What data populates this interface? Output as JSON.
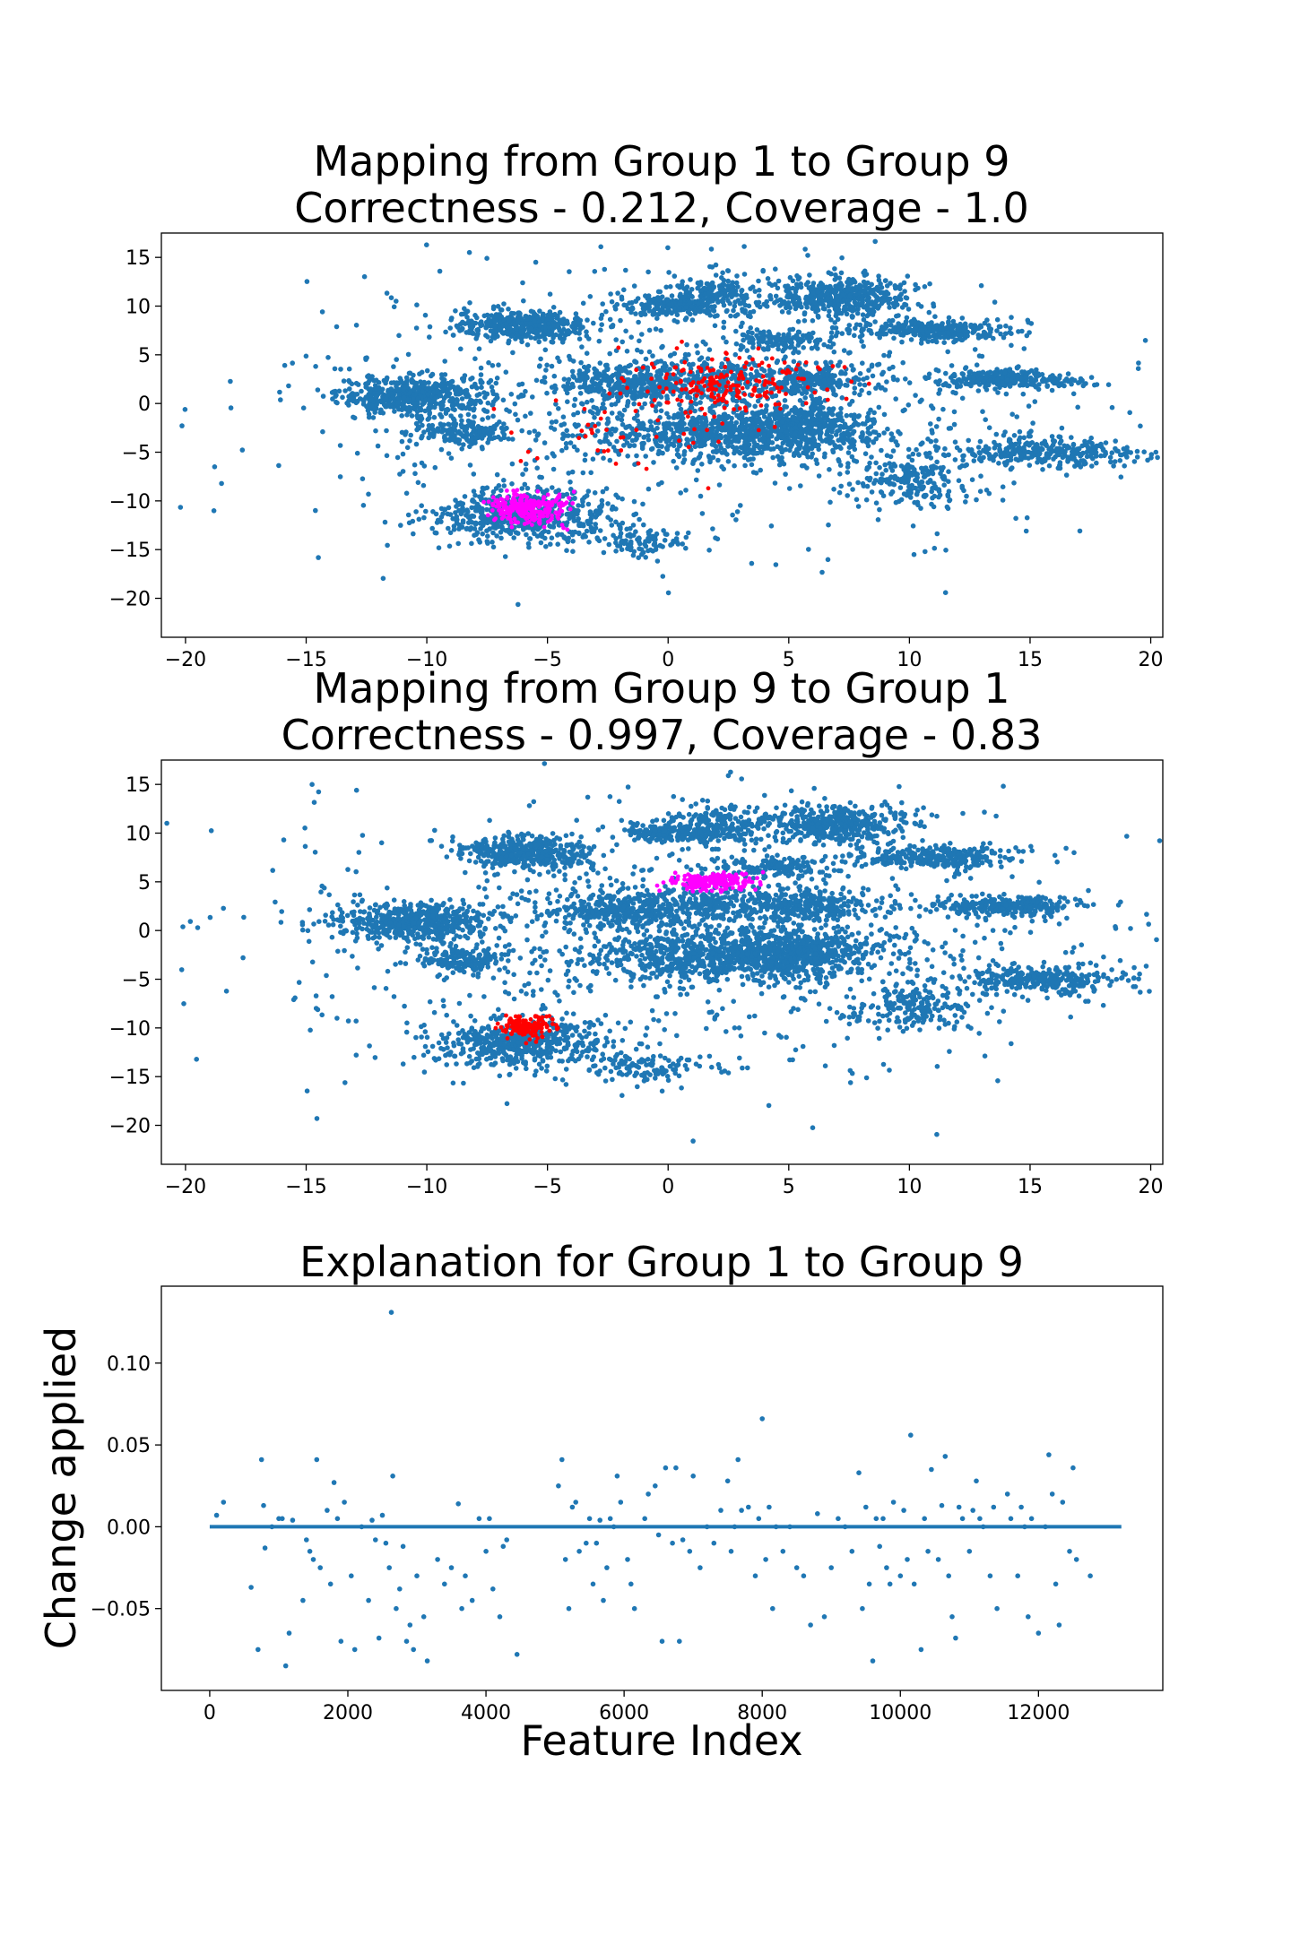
{
  "colors": {
    "population": "#1f77b4",
    "source_group": "#ff0000",
    "target_group": "#ff00ff",
    "explanation_line": "#1f77b4"
  },
  "chart_data": [
    {
      "type": "scatter",
      "title_lines": [
        "Mapping from Group 1 to Group 9",
        "Correctness - 0.212, Coverage - 1.0"
      ],
      "xlabel": "",
      "ylabel": "",
      "xlim": [
        -21,
        20.5
      ],
      "ylim": [
        -24,
        17.5
      ],
      "xticks": [
        -20,
        -15,
        -10,
        -5,
        0,
        5,
        10,
        15,
        20
      ],
      "yticks": [
        15,
        10,
        5,
        0,
        -5,
        -10,
        -15,
        -20
      ],
      "tick_labels_x": [
        "−20",
        "−15",
        "−10",
        "−5",
        "0",
        "5",
        "10",
        "15",
        "20"
      ],
      "tick_labels_y": [
        "15",
        "10",
        "5",
        "0",
        "−5",
        "−10",
        "−15",
        "−20"
      ],
      "grid": false,
      "series": [
        {
          "role": "population",
          "clusters": [
            {
              "cx": -10.5,
              "cy": 0.8,
              "sx": 1.6,
              "sy": 1.0,
              "n": 520
            },
            {
              "cx": -6.0,
              "cy": 8.0,
              "sx": 1.4,
              "sy": 0.8,
              "n": 420
            },
            {
              "cx": -8.5,
              "cy": -3.0,
              "sx": 1.0,
              "sy": 0.6,
              "n": 160
            },
            {
              "cx": -6.0,
              "cy": -11.5,
              "sx": 1.9,
              "sy": 1.3,
              "n": 520
            },
            {
              "cx": 3.0,
              "cy": -3.0,
              "sx": 3.2,
              "sy": 1.4,
              "n": 900
            },
            {
              "cx": 5.5,
              "cy": -2.0,
              "sx": 1.2,
              "sy": 1.0,
              "n": 200
            },
            {
              "cx": 1.5,
              "cy": 2.5,
              "sx": 2.2,
              "sy": 1.0,
              "n": 320
            },
            {
              "cx": -2.0,
              "cy": 2.0,
              "sx": 1.5,
              "sy": 1.0,
              "n": 250
            },
            {
              "cx": 2.0,
              "cy": 11.0,
              "sx": 1.0,
              "sy": 1.0,
              "n": 200
            },
            {
              "cx": 0.0,
              "cy": 10.0,
              "sx": 0.9,
              "sy": 0.5,
              "n": 160
            },
            {
              "cx": 7.0,
              "cy": 11.0,
              "sx": 1.5,
              "sy": 1.0,
              "n": 420
            },
            {
              "cx": 11.0,
              "cy": 7.5,
              "sx": 1.6,
              "sy": 0.5,
              "n": 300
            },
            {
              "cx": 14.0,
              "cy": 2.5,
              "sx": 1.6,
              "sy": 0.5,
              "n": 260
            },
            {
              "cx": 6.0,
              "cy": 2.5,
              "sx": 1.3,
              "sy": 0.8,
              "n": 220
            },
            {
              "cx": 4.5,
              "cy": 6.5,
              "sx": 1.0,
              "sy": 0.5,
              "n": 120
            },
            {
              "cx": 15.5,
              "cy": -5.0,
              "sx": 1.8,
              "sy": 0.7,
              "n": 300
            },
            {
              "cx": 10.0,
              "cy": -8.0,
              "sx": 1.3,
              "sy": 1.2,
              "n": 200
            },
            {
              "cx": -1.0,
              "cy": -14.0,
              "sx": 1.2,
              "sy": 0.8,
              "n": 100
            },
            {
              "cx": 1.0,
              "cy": 0.0,
              "sx": 9.0,
              "sy": 7.0,
              "n": 800
            }
          ]
        },
        {
          "role": "source_group",
          "clusters": [
            {
              "cx": 2.5,
              "cy": 2.0,
              "sx": 2.0,
              "sy": 1.5,
              "n": 200
            },
            {
              "cx": -2.0,
              "cy": -3.0,
              "sx": 2.0,
              "sy": 2.0,
              "n": 40
            }
          ]
        },
        {
          "role": "target_group",
          "clusters": [
            {
              "cx": -5.8,
              "cy": -10.8,
              "sx": 0.8,
              "sy": 0.8,
              "n": 260
            }
          ]
        }
      ]
    },
    {
      "type": "scatter",
      "title_lines": [
        "Mapping from Group 9 to Group 1",
        "Correctness - 0.997, Coverage - 0.83"
      ],
      "xlabel": "",
      "ylabel": "",
      "xlim": [
        -21,
        20.5
      ],
      "ylim": [
        -24,
        17.5
      ],
      "xticks": [
        -20,
        -15,
        -10,
        -5,
        0,
        5,
        10,
        15,
        20
      ],
      "yticks": [
        15,
        10,
        5,
        0,
        -5,
        -10,
        -15,
        -20
      ],
      "tick_labels_x": [
        "−20",
        "−15",
        "−10",
        "−5",
        "0",
        "5",
        "10",
        "15",
        "20"
      ],
      "tick_labels_y": [
        "15",
        "10",
        "5",
        "0",
        "−5",
        "−10",
        "−15",
        "−20"
      ],
      "grid": false,
      "series": [
        {
          "role": "population",
          "clusters": [
            {
              "cx": -10.5,
              "cy": 0.8,
              "sx": 1.6,
              "sy": 1.0,
              "n": 520
            },
            {
              "cx": -6.0,
              "cy": 8.0,
              "sx": 1.4,
              "sy": 0.8,
              "n": 420
            },
            {
              "cx": -8.5,
              "cy": -3.0,
              "sx": 1.0,
              "sy": 0.6,
              "n": 160
            },
            {
              "cx": -6.0,
              "cy": -11.5,
              "sx": 1.9,
              "sy": 1.3,
              "n": 520
            },
            {
              "cx": 3.0,
              "cy": -2.5,
              "sx": 3.2,
              "sy": 1.4,
              "n": 1000
            },
            {
              "cx": 5.5,
              "cy": -2.0,
              "sx": 1.2,
              "sy": 1.0,
              "n": 200
            },
            {
              "cx": 1.5,
              "cy": 2.5,
              "sx": 2.2,
              "sy": 1.0,
              "n": 320
            },
            {
              "cx": -2.0,
              "cy": 2.0,
              "sx": 1.5,
              "sy": 1.0,
              "n": 250
            },
            {
              "cx": 2.0,
              "cy": 11.0,
              "sx": 1.0,
              "sy": 1.0,
              "n": 200
            },
            {
              "cx": 0.0,
              "cy": 10.0,
              "sx": 0.9,
              "sy": 0.5,
              "n": 160
            },
            {
              "cx": 7.0,
              "cy": 11.0,
              "sx": 1.5,
              "sy": 1.0,
              "n": 420
            },
            {
              "cx": 11.0,
              "cy": 7.5,
              "sx": 1.6,
              "sy": 0.5,
              "n": 300
            },
            {
              "cx": 14.0,
              "cy": 2.5,
              "sx": 1.6,
              "sy": 0.5,
              "n": 260
            },
            {
              "cx": 6.0,
              "cy": 2.5,
              "sx": 1.3,
              "sy": 0.8,
              "n": 220
            },
            {
              "cx": 4.5,
              "cy": 6.5,
              "sx": 1.0,
              "sy": 0.5,
              "n": 120
            },
            {
              "cx": 15.5,
              "cy": -5.0,
              "sx": 1.8,
              "sy": 0.7,
              "n": 300
            },
            {
              "cx": 10.0,
              "cy": -8.0,
              "sx": 1.3,
              "sy": 1.2,
              "n": 200
            },
            {
              "cx": -1.0,
              "cy": -14.0,
              "sx": 1.2,
              "sy": 0.8,
              "n": 100
            },
            {
              "cx": 1.0,
              "cy": 0.0,
              "sx": 9.0,
              "sy": 7.0,
              "n": 800
            }
          ]
        },
        {
          "role": "source_group",
          "clusters": [
            {
              "cx": -5.8,
              "cy": -9.8,
              "sx": 0.5,
              "sy": 0.5,
              "n": 150
            }
          ]
        },
        {
          "role": "target_group",
          "clusters": [
            {
              "cx": 2.0,
              "cy": 5.0,
              "sx": 0.9,
              "sy": 0.4,
              "n": 200
            }
          ]
        }
      ]
    },
    {
      "type": "scatter",
      "title": "Explanation for Group 1 to Group 9",
      "xlabel": "Feature Index",
      "ylabel": "Change applied",
      "xlim": [
        -700,
        13800
      ],
      "ylim": [
        -0.1,
        0.147
      ],
      "xticks": [
        0,
        2000,
        4000,
        6000,
        8000,
        10000,
        12000
      ],
      "yticks": [
        0.1,
        0.05,
        0.0,
        -0.05
      ],
      "tick_labels_x": [
        "0",
        "2000",
        "4000",
        "6000",
        "8000",
        "10000",
        "12000"
      ],
      "tick_labels_y": [
        "0.10",
        "0.05",
        "0.00",
        "−0.05"
      ],
      "grid": false,
      "baseline": {
        "x_start": 0,
        "x_end": 13200,
        "y": 0.0
      },
      "points": [
        [
          100,
          0.007
        ],
        [
          200,
          0.015
        ],
        [
          600,
          -0.037
        ],
        [
          700,
          -0.075
        ],
        [
          750,
          0.041
        ],
        [
          800,
          -0.013
        ],
        [
          780,
          0.013
        ],
        [
          900,
          0.0
        ],
        [
          1000,
          0.005
        ],
        [
          1050,
          0.005
        ],
        [
          1100,
          -0.085
        ],
        [
          1150,
          -0.065
        ],
        [
          1200,
          0.004
        ],
        [
          1350,
          -0.045
        ],
        [
          1400,
          -0.008
        ],
        [
          1450,
          -0.015
        ],
        [
          1500,
          -0.02
        ],
        [
          1550,
          0.041
        ],
        [
          1600,
          -0.025
        ],
        [
          1700,
          0.01
        ],
        [
          1750,
          -0.035
        ],
        [
          1800,
          0.027
        ],
        [
          1850,
          0.005
        ],
        [
          1900,
          -0.07
        ],
        [
          1950,
          0.015
        ],
        [
          2050,
          -0.03
        ],
        [
          2100,
          -0.075
        ],
        [
          2200,
          0.0
        ],
        [
          2300,
          -0.045
        ],
        [
          2350,
          0.004
        ],
        [
          2400,
          -0.008
        ],
        [
          2450,
          -0.068
        ],
        [
          2500,
          0.007
        ],
        [
          2550,
          -0.01
        ],
        [
          2600,
          -0.025
        ],
        [
          2630,
          0.131
        ],
        [
          2650,
          0.031
        ],
        [
          2700,
          -0.05
        ],
        [
          2750,
          -0.038
        ],
        [
          2800,
          -0.012
        ],
        [
          2850,
          -0.07
        ],
        [
          2900,
          -0.06
        ],
        [
          2950,
          -0.075
        ],
        [
          3000,
          -0.03
        ],
        [
          3100,
          -0.055
        ],
        [
          3150,
          -0.082
        ],
        [
          3300,
          -0.02
        ],
        [
          3400,
          -0.035
        ],
        [
          3500,
          -0.025
        ],
        [
          3600,
          0.014
        ],
        [
          3650,
          -0.05
        ],
        [
          3700,
          -0.03
        ],
        [
          3800,
          -0.045
        ],
        [
          3900,
          0.005
        ],
        [
          4000,
          -0.015
        ],
        [
          4050,
          0.005
        ],
        [
          4100,
          -0.038
        ],
        [
          4200,
          -0.055
        ],
        [
          4250,
          -0.012
        ],
        [
          4300,
          -0.008
        ],
        [
          4450,
          -0.078
        ],
        [
          5050,
          0.025
        ],
        [
          5100,
          0.041
        ],
        [
          5150,
          -0.02
        ],
        [
          5200,
          -0.05
        ],
        [
          5250,
          0.012
        ],
        [
          5300,
          0.015
        ],
        [
          5350,
          -0.015
        ],
        [
          5450,
          -0.01
        ],
        [
          5500,
          0.005
        ],
        [
          5550,
          -0.035
        ],
        [
          5600,
          -0.01
        ],
        [
          5650,
          0.004
        ],
        [
          5700,
          -0.045
        ],
        [
          5750,
          -0.025
        ],
        [
          5800,
          0.005
        ],
        [
          5850,
          0.0
        ],
        [
          5900,
          0.031
        ],
        [
          5950,
          0.015
        ],
        [
          6050,
          -0.02
        ],
        [
          6100,
          -0.035
        ],
        [
          6150,
          -0.05
        ],
        [
          6300,
          0.005
        ],
        [
          6350,
          0.02
        ],
        [
          6450,
          0.025
        ],
        [
          6500,
          -0.005
        ],
        [
          6550,
          -0.07
        ],
        [
          6600,
          0.036
        ],
        [
          6700,
          -0.01
        ],
        [
          6750,
          0.036
        ],
        [
          6800,
          -0.07
        ],
        [
          6850,
          -0.008
        ],
        [
          6950,
          -0.015
        ],
        [
          7000,
          0.031
        ],
        [
          7100,
          -0.025
        ],
        [
          7200,
          0.0
        ],
        [
          7300,
          -0.01
        ],
        [
          7400,
          0.01
        ],
        [
          7500,
          0.028
        ],
        [
          7550,
          -0.015
        ],
        [
          7600,
          0.0
        ],
        [
          7650,
          0.041
        ],
        [
          7700,
          0.01
        ],
        [
          7800,
          0.012
        ],
        [
          7900,
          -0.03
        ],
        [
          7950,
          0.005
        ],
        [
          8000,
          0.066
        ],
        [
          8050,
          -0.02
        ],
        [
          8100,
          0.012
        ],
        [
          8150,
          -0.05
        ],
        [
          8200,
          0.0
        ],
        [
          8300,
          -0.015
        ],
        [
          8400,
          0.0
        ],
        [
          8500,
          -0.025
        ],
        [
          8600,
          -0.03
        ],
        [
          8700,
          -0.06
        ],
        [
          8800,
          0.008
        ],
        [
          8900,
          -0.055
        ],
        [
          9000,
          -0.025
        ],
        [
          9100,
          0.005
        ],
        [
          9200,
          0.0
        ],
        [
          9300,
          -0.015
        ],
        [
          9400,
          0.033
        ],
        [
          9450,
          -0.05
        ],
        [
          9500,
          0.012
        ],
        [
          9550,
          -0.035
        ],
        [
          9600,
          -0.082
        ],
        [
          9650,
          0.005
        ],
        [
          9700,
          -0.012
        ],
        [
          9750,
          0.005
        ],
        [
          9800,
          -0.025
        ],
        [
          9850,
          -0.035
        ],
        [
          9900,
          0.015
        ],
        [
          10000,
          -0.03
        ],
        [
          10050,
          0.01
        ],
        [
          10100,
          -0.02
        ],
        [
          10150,
          0.056
        ],
        [
          10200,
          -0.035
        ],
        [
          10300,
          -0.075
        ],
        [
          10350,
          0.005
        ],
        [
          10400,
          -0.015
        ],
        [
          10450,
          0.035
        ],
        [
          10550,
          -0.02
        ],
        [
          10600,
          0.013
        ],
        [
          10650,
          0.043
        ],
        [
          10700,
          -0.03
        ],
        [
          10750,
          -0.055
        ],
        [
          10800,
          -0.068
        ],
        [
          10850,
          0.012
        ],
        [
          10900,
          0.005
        ],
        [
          11000,
          -0.015
        ],
        [
          11050,
          0.01
        ],
        [
          11100,
          0.028
        ],
        [
          11150,
          0.005
        ],
        [
          11200,
          0.0
        ],
        [
          11300,
          -0.03
        ],
        [
          11350,
          0.012
        ],
        [
          11400,
          -0.05
        ],
        [
          11550,
          0.02
        ],
        [
          11600,
          0.005
        ],
        [
          11700,
          -0.03
        ],
        [
          11750,
          0.012
        ],
        [
          11800,
          0.0
        ],
        [
          11850,
          -0.055
        ],
        [
          11900,
          0.005
        ],
        [
          12000,
          -0.065
        ],
        [
          12100,
          0.0
        ],
        [
          12150,
          0.044
        ],
        [
          12200,
          0.02
        ],
        [
          12250,
          -0.035
        ],
        [
          12300,
          -0.06
        ],
        [
          12350,
          0.015
        ],
        [
          12450,
          -0.015
        ],
        [
          12500,
          0.036
        ],
        [
          12550,
          -0.02
        ],
        [
          12750,
          -0.03
        ]
      ]
    }
  ]
}
